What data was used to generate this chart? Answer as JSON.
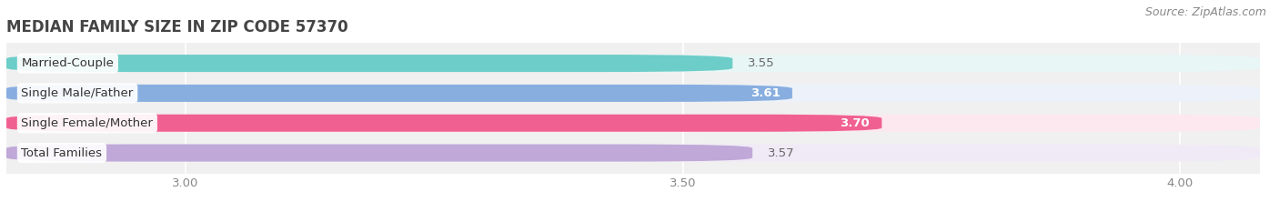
{
  "title": "MEDIAN FAMILY SIZE IN ZIP CODE 57370",
  "source": "Source: ZipAtlas.com",
  "categories": [
    "Married-Couple",
    "Single Male/Father",
    "Single Female/Mother",
    "Total Families"
  ],
  "values": [
    3.55,
    3.61,
    3.7,
    3.57
  ],
  "bar_colors": [
    "#6dcdc8",
    "#88aee0",
    "#f06090",
    "#c0a8d8"
  ],
  "bar_bg_colors": [
    "#e8f6f5",
    "#edf2fa",
    "#fde8ef",
    "#f0eaf6"
  ],
  "value_label_inside": [
    false,
    true,
    true,
    false
  ],
  "value_label_colors_inside": "#ffffff",
  "value_label_colors_outside": "#666666",
  "xlim_left": 2.82,
  "xlim_right": 4.08,
  "x_ticks": [
    3.0,
    3.5,
    4.0
  ],
  "x_tick_labels": [
    "3.00",
    "3.50",
    "4.00"
  ],
  "title_fontsize": 12,
  "cat_label_fontsize": 9.5,
  "value_fontsize": 9.5,
  "source_fontsize": 9,
  "bar_height": 0.58,
  "bar_gap": 0.18,
  "background_color": "#ffffff",
  "plot_bg_color": "#f0f0f0",
  "grid_color": "#ffffff",
  "title_color": "#444444",
  "source_color": "#888888",
  "tick_color": "#888888"
}
